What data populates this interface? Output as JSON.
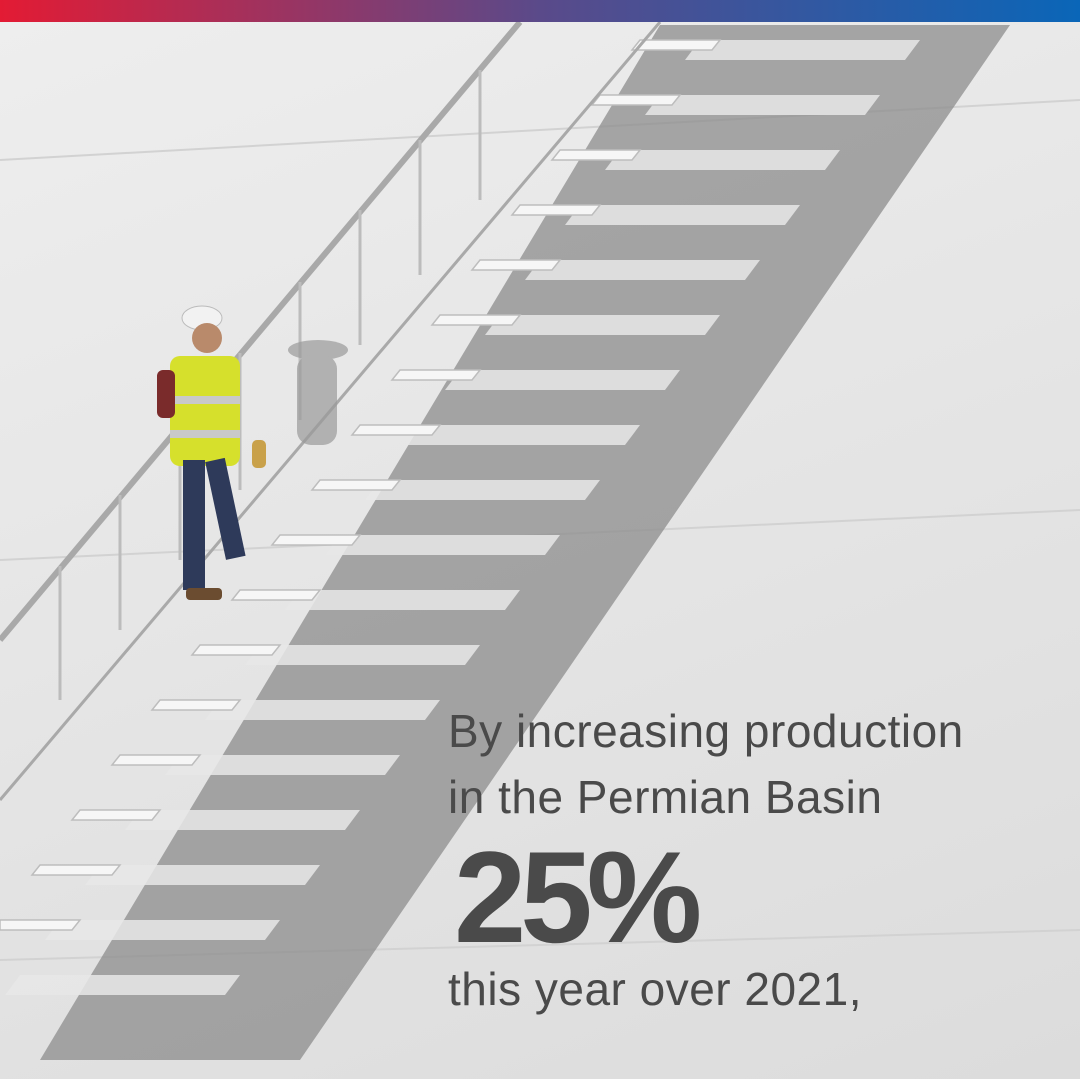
{
  "caption": {
    "line1": "By increasing production",
    "line2": "in the Permian Basin",
    "stat": "25%",
    "line3": "this year over 2021,"
  },
  "colors": {
    "bar_start": "#e31b34",
    "bar_mid": "#5a4a8a",
    "bar_end": "#0a66b8",
    "text": "#4a4a4a",
    "background": "#e6e6e6"
  },
  "icons": [
    "worker-figure",
    "staircase",
    "handrail"
  ]
}
